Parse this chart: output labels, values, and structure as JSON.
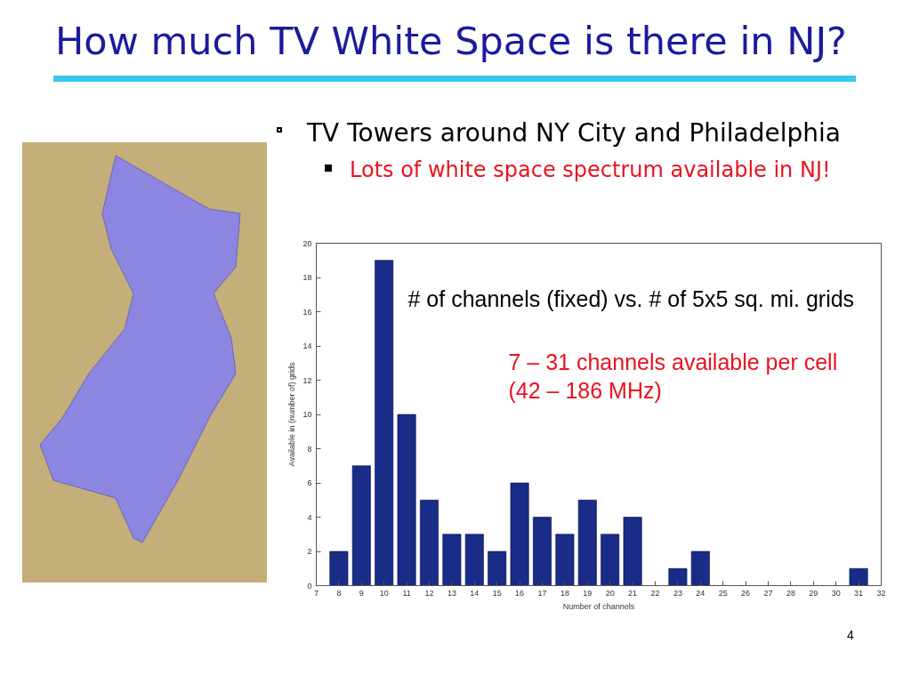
{
  "chart_data": {
    "type": "bar",
    "title": "How much TV White Space is there in NJ?",
    "subtitle": "TV Towers around NY City and Philadelphia\nLots of white space spectrum available in NJ!",
    "xlabel": "Number of channels",
    "ylabel": "Available in (number of) grids",
    "x": [
      8,
      9,
      10,
      11,
      12,
      13,
      14,
      15,
      16,
      17,
      18,
      19,
      20,
      21,
      23,
      24,
      31
    ],
    "values": [
      2,
      7,
      19,
      10,
      5,
      3,
      3,
      2,
      6,
      4,
      3,
      5,
      3,
      4,
      1,
      2,
      1
    ],
    "color": "#182c88",
    "xlim": [
      7,
      32
    ],
    "xticks": [
      7,
      8,
      9,
      10,
      11,
      12,
      13,
      14,
      15,
      16,
      17,
      18,
      19,
      20,
      21,
      22,
      23,
      24,
      25,
      26,
      27,
      28,
      29,
      30,
      31,
      32
    ],
    "ylim": [
      0,
      20
    ],
    "yticks": [
      0,
      2,
      4,
      6,
      8,
      10,
      12,
      14,
      16,
      18,
      20
    ],
    "grid": false,
    "annotations": [
      "# of channels (fixed) vs. # of 5x5 sq. mi. grids",
      "7 – 31 channels available per cell\n(42 – 186 MHz)",
      "4"
    ]
  }
}
